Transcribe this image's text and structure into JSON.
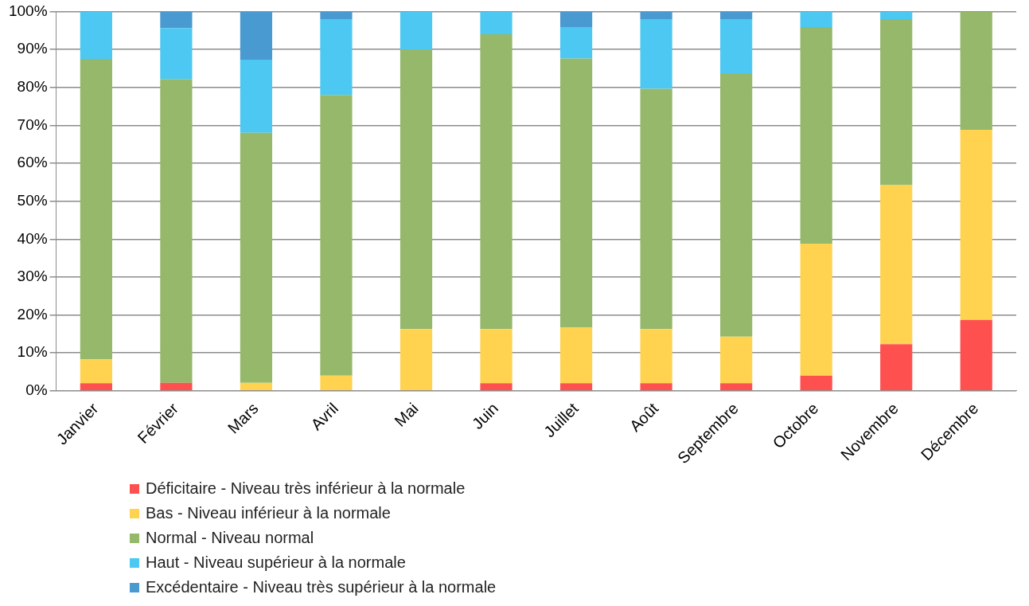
{
  "chart_data": {
    "type": "bar",
    "stacked": true,
    "categories": [
      "Janvier",
      "Février",
      "Mars",
      "Avril",
      "Mai",
      "Juin",
      "Juillet",
      "Août",
      "Septembre",
      "Octobre",
      "Novembre",
      "Décembre"
    ],
    "series": [
      {
        "name": "Déficitaire - Niveau très inférieur à la normale",
        "color": "#ff5050",
        "values": [
          2,
          2.1,
          0,
          0,
          0,
          2,
          2,
          2,
          2,
          4,
          12.3,
          18.7
        ]
      },
      {
        "name": "Bas - Niveau inférieur à la normale",
        "color": "#ffd24f",
        "values": [
          6.3,
          0,
          2.1,
          4,
          16.3,
          14.3,
          14.7,
          14.3,
          12.3,
          34.8,
          41.9,
          50.1
        ]
      },
      {
        "name": "Normal - Niveau normal",
        "color": "#95b86a",
        "values": [
          79.2,
          80.1,
          65.9,
          74,
          73.7,
          77.7,
          70.9,
          63.3,
          69.4,
          57.1,
          43.8,
          31.2
        ]
      },
      {
        "name": "Haut - Niveau supérieur à la normale",
        "color": "#4dc8f2",
        "values": [
          12.5,
          13.4,
          19.3,
          20,
          10,
          6,
          8.3,
          18.4,
          14.3,
          4.1,
          2,
          0
        ]
      },
      {
        "name": "Excédentaire - Niveau très supérieur à la normale",
        "color": "#4a9ad2",
        "values": [
          0,
          4.4,
          12.7,
          2,
          0,
          0,
          4.1,
          2,
          2,
          0,
          0,
          0
        ]
      }
    ],
    "ylim": [
      0,
      100
    ],
    "yticks": [
      {
        "value": 0,
        "label": "0%"
      },
      {
        "value": 10,
        "label": "10%"
      },
      {
        "value": 20,
        "label": "20%"
      },
      {
        "value": 30,
        "label": "30%"
      },
      {
        "value": 40,
        "label": "40%"
      },
      {
        "value": 50,
        "label": "50%"
      },
      {
        "value": 60,
        "label": "60%"
      },
      {
        "value": 70,
        "label": "70%"
      },
      {
        "value": 80,
        "label": "80%"
      },
      {
        "value": 90,
        "label": "90%"
      },
      {
        "value": 100,
        "label": "100%"
      }
    ],
    "grid": "y",
    "legend": "bottom"
  }
}
